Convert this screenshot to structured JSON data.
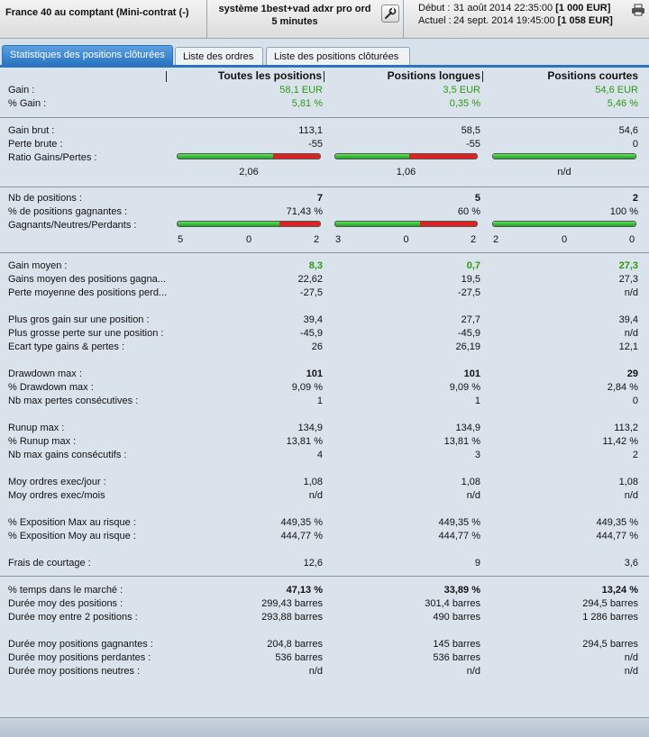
{
  "header": {
    "instrument": "France 40 au comptant (Mini-contrat  (-)",
    "system_line1": "système 1best+vad adxr pro ord",
    "system_line2": "5 minutes",
    "start_label": "Début :",
    "start_date": "31 août 2014 22:35:00",
    "start_capital": "[1 000 EUR]",
    "current_label": "Actuel :",
    "current_date": "24 sept. 2014 19:45:00",
    "current_capital": "[1 058 EUR]"
  },
  "tabs": [
    "Statistiques des positions clôturées",
    "Liste des ordres",
    "Liste des positions clôturées"
  ],
  "columns": [
    "Toutes les positions",
    "Positions longues",
    "Positions courtes"
  ],
  "stats": {
    "gain": {
      "label": "Gain :",
      "v": [
        "58,1 EUR",
        "3,5 EUR",
        "54,6 EUR"
      ]
    },
    "pct_gain": {
      "label": "% Gain :",
      "v": [
        "5,81 %",
        "0,35 %",
        "5,46 %"
      ]
    },
    "gain_brut": {
      "label": "Gain brut :",
      "v": [
        "113,1",
        "58,5",
        "54,6"
      ]
    },
    "perte_brute": {
      "label": "Perte brute :",
      "v": [
        "-55",
        "-55",
        "0"
      ]
    },
    "ratio": {
      "label": "Ratio Gains/Pertes :",
      "v": [
        "2,06",
        "1,06",
        "n/d"
      ],
      "fill": [
        0.67,
        0.52,
        1.0
      ]
    },
    "nb_positions": {
      "label": "Nb de positions :",
      "v": [
        "7",
        "5",
        "2"
      ]
    },
    "pct_gagnantes": {
      "label": "% de positions gagnantes :",
      "v": [
        "71,43 %",
        "60 %",
        "100 %"
      ]
    },
    "gnp": {
      "label": "Gagnants/Neutres/Perdants :",
      "fill": [
        0.7143,
        0.6,
        1.0
      ],
      "g": [
        "5",
        "3",
        "2"
      ],
      "n": [
        "0",
        "0",
        "0"
      ],
      "p": [
        "2",
        "2",
        "0"
      ]
    },
    "gain_moyen": {
      "label": "Gain moyen :",
      "v": [
        "8,3",
        "0,7",
        "27,3"
      ]
    },
    "gains_moy_gagnantes": {
      "label": "Gains moyen des positions gagna...",
      "v": [
        "22,62",
        "19,5",
        "27,3"
      ]
    },
    "perte_moy_perdantes": {
      "label": "Perte moyenne des positions perd...",
      "v": [
        "-27,5",
        "-27,5",
        "n/d"
      ]
    },
    "plus_gros_gain": {
      "label": "Plus gros gain sur une position :",
      "v": [
        "39,4",
        "27,7",
        "39,4"
      ]
    },
    "plus_grosse_perte": {
      "label": "Plus grosse perte sur une position :",
      "v": [
        "-45,9",
        "-45,9",
        "n/d"
      ]
    },
    "ecart_type": {
      "label": "Ecart type gains & pertes :",
      "v": [
        "26",
        "26,19",
        "12,1"
      ]
    },
    "drawdown": {
      "label": "Drawdown max :",
      "v": [
        "101",
        "101",
        "29"
      ]
    },
    "pct_drawdown": {
      "label": "% Drawdown max :",
      "v": [
        "9,09 %",
        "9,09 %",
        "2,84 %"
      ]
    },
    "nb_pertes_consec": {
      "label": "Nb max pertes consécutives :",
      "v": [
        "1",
        "1",
        "0"
      ]
    },
    "runup": {
      "label": "Runup max :",
      "v": [
        "134,9",
        "134,9",
        "113,2"
      ]
    },
    "pct_runup": {
      "label": "% Runup max :",
      "v": [
        "13,81 %",
        "13,81 %",
        "11,42 %"
      ]
    },
    "nb_gains_consec": {
      "label": "Nb max gains consécutifs :",
      "v": [
        "4",
        "3",
        "2"
      ]
    },
    "moy_ordres_jour": {
      "label": "Moy ordres exec/jour :",
      "v": [
        "1,08",
        "1,08",
        "1,08"
      ]
    },
    "moy_ordres_mois": {
      "label": "Moy ordres exec/mois",
      "v": [
        "n/d",
        "n/d",
        "n/d"
      ]
    },
    "expo_max": {
      "label": "% Exposition Max au risque :",
      "v": [
        "449,35 %",
        "449,35 %",
        "449,35 %"
      ]
    },
    "expo_moy": {
      "label": "% Exposition Moy au risque :",
      "v": [
        "444,77 %",
        "444,77 %",
        "444,77 %"
      ]
    },
    "frais": {
      "label": "Frais de courtage :",
      "v": [
        "12,6",
        "9",
        "3,6"
      ]
    },
    "temps_marche": {
      "label": "% temps dans le marché :",
      "v": [
        "47,13 %",
        "33,89 %",
        "13,24 %"
      ]
    },
    "duree_moy_pos": {
      "label": "Durée moy des positions :",
      "v": [
        "299,43 barres",
        "301,4 barres",
        "294,5 barres"
      ]
    },
    "duree_moy_entre": {
      "label": "Durée moy entre 2 positions :",
      "v": [
        "293,88 barres",
        "490 barres",
        "1 286 barres"
      ]
    },
    "duree_gagnantes": {
      "label": "Durée moy positions gagnantes :",
      "v": [
        "204,8 barres",
        "145 barres",
        "294,5 barres"
      ]
    },
    "duree_perdantes": {
      "label": "Durée moy positions perdantes :",
      "v": [
        "536 barres",
        "536 barres",
        "n/d"
      ]
    },
    "duree_neutres": {
      "label": "Durée moy positions neutres :",
      "v": [
        "n/d",
        "n/d",
        "n/d"
      ]
    }
  },
  "colors": {
    "accent": "#2a74c0",
    "gain_green": "#2a9a10",
    "bar_red": "#d22222"
  }
}
